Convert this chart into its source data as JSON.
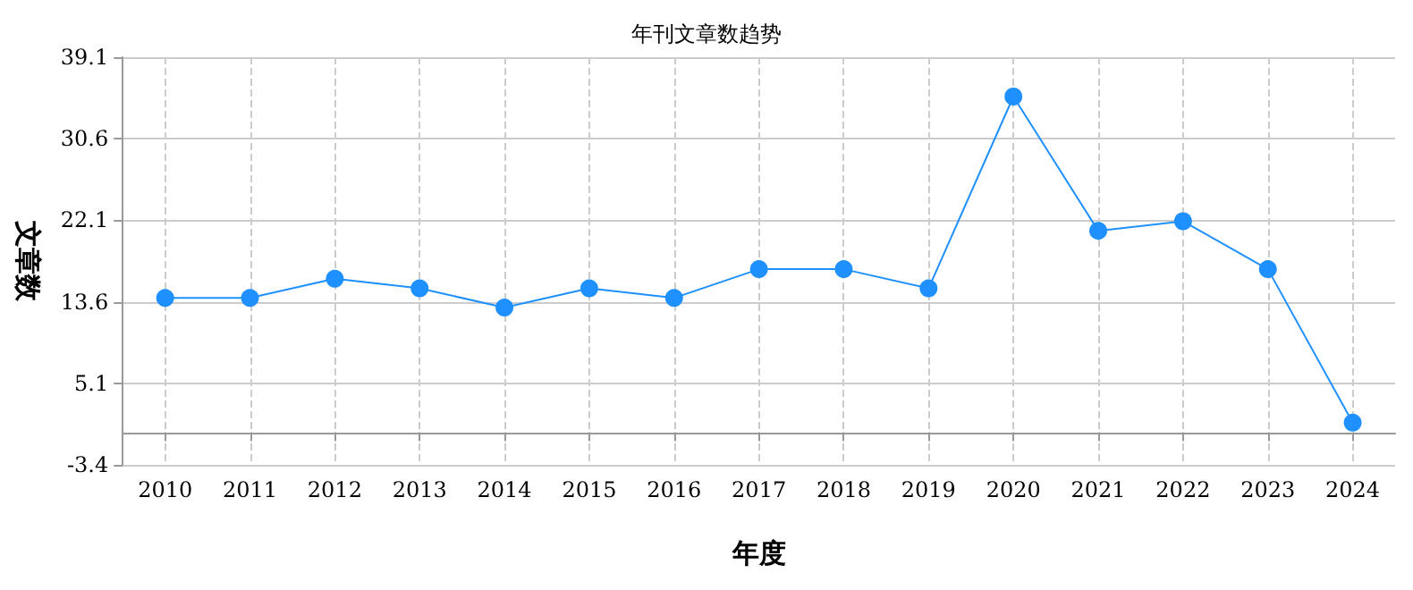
{
  "chart_data": {
    "type": "line",
    "title": "年刊文章数趋势",
    "xlabel": "年度",
    "ylabel": "文章数",
    "categories": [
      "2010",
      "2011",
      "2012",
      "2013",
      "2014",
      "2015",
      "2016",
      "2017",
      "2018",
      "2019",
      "2020",
      "2021",
      "2022",
      "2023",
      "2024"
    ],
    "series": [
      {
        "color": "#1e90ff",
        "values": [
          14,
          14,
          16,
          15,
          13,
          15,
          14,
          17,
          17,
          15,
          35,
          21,
          22,
          17,
          1
        ]
      }
    ],
    "ylim": [
      -3.4,
      39.1
    ],
    "yticks": [
      -3.4,
      5.1,
      13.6,
      22.1,
      30.6,
      39.1
    ],
    "grid": true,
    "marker": "circle",
    "line_style": "solid"
  }
}
